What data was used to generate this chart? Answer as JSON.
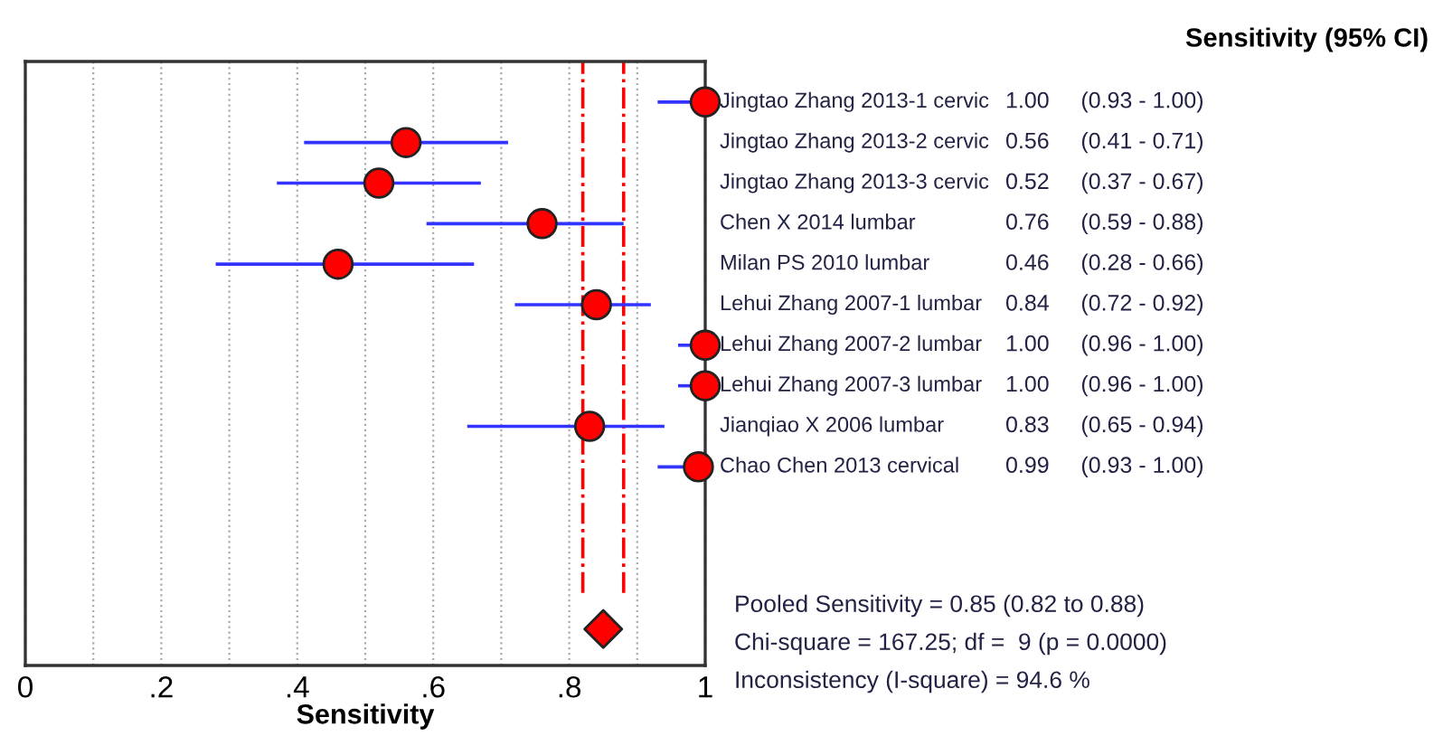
{
  "chart_data": {
    "type": "scatter",
    "orientation": "horizontal",
    "xlabel": "Sensitivity",
    "legend_title": "Sensitivity (95% CI)",
    "categories": [
      "Jingtao Zhang 2013-1 cervic",
      "Jingtao Zhang 2013-2 cervic",
      "Jingtao Zhang 2013-3 cervic",
      "Chen X 2014 lumbar",
      "Milan PS 2010 lumbar",
      "Lehui Zhang 2007-1 lumbar",
      "Lehui Zhang 2007-2 lumbar",
      "Lehui Zhang 2007-3 lumbar",
      "Jianqiao X 2006 lumbar",
      "Chao Chen 2013 cervical",
      null,
      null,
      null,
      null
    ],
    "series": [
      {
        "color": "#ff0000",
        "marker": "circle",
        "values": [
          1.0,
          0.56,
          0.52,
          0.76,
          0.46,
          0.84,
          1.0,
          1.0,
          0.83,
          0.99,
          null,
          null,
          null,
          null
        ],
        "errors": [
          [
            0.93,
            1.0
          ],
          [
            0.41,
            0.71
          ],
          [
            0.37,
            0.67
          ],
          [
            0.59,
            0.88
          ],
          [
            0.28,
            0.66
          ],
          [
            0.72,
            0.92
          ],
          [
            0.96,
            1.0
          ],
          [
            0.96,
            1.0
          ],
          [
            0.65,
            0.94
          ],
          [
            0.93,
            1.0
          ],
          null,
          null,
          null,
          null
        ],
        "value_labels": [
          "1.00     (0.93 - 1.00)",
          "0.56     (0.41 - 0.71)",
          "0.52     (0.37 - 0.67)",
          "0.76     (0.59 - 0.88)",
          "0.46     (0.28 - 0.66)",
          "0.84     (0.72 - 0.92)",
          "1.00     (0.96 - 1.00)",
          "1.00     (0.96 - 1.00)",
          "0.83     (0.65 - 0.94)",
          "0.99     (0.93 - 1.00)",
          null,
          null,
          null,
          null
        ]
      },
      {
        "color": "#ff0000",
        "marker": "diamond",
        "values": [
          null,
          null,
          null,
          null,
          null,
          null,
          null,
          null,
          null,
          null,
          null,
          null,
          null,
          0.85
        ]
      }
    ],
    "ref_lines": [
      {
        "axis": "x",
        "value": 0.82,
        "color": "#ff0000",
        "line_style": "dashed"
      },
      {
        "axis": "x",
        "value": 0.88,
        "color": "#ff0000",
        "line_style": "dashed"
      }
    ],
    "xlim": [
      0,
      1
    ],
    "xticks": [
      0,
      {
        "value": 0.1,
        "label": null
      },
      {
        "value": 0.2,
        "label": ".2"
      },
      {
        "value": 0.3,
        "label": null
      },
      {
        "value": 0.4,
        "label": ".4"
      },
      {
        "value": 0.5,
        "label": null
      },
      {
        "value": 0.6,
        "label": ".6"
      },
      {
        "value": 0.7,
        "label": null
      },
      {
        "value": 0.8,
        "label": ".8"
      },
      {
        "value": 0.9,
        "label": null
      },
      1
    ],
    "grid": "x",
    "annotations": [
      "Pooled Sensitivity = 0.85 (0.82 to 0.88)",
      "Chi-square = 167.25; df =  9 (p = 0.0000)",
      "Inconsistency (I-square) = 94.6 %"
    ]
  }
}
